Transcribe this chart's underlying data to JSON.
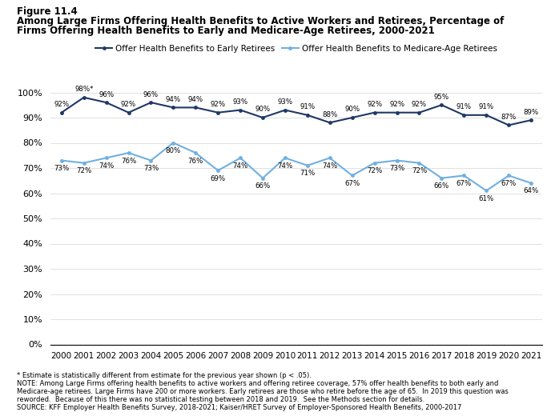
{
  "years": [
    2000,
    2001,
    2002,
    2003,
    2004,
    2005,
    2006,
    2007,
    2008,
    2009,
    2010,
    2011,
    2012,
    2013,
    2014,
    2015,
    2016,
    2017,
    2018,
    2019,
    2020,
    2021
  ],
  "early_retirees": [
    92,
    98,
    96,
    92,
    96,
    94,
    94,
    92,
    93,
    90,
    93,
    91,
    88,
    90,
    92,
    92,
    92,
    95,
    91,
    91,
    87,
    89
  ],
  "medicare_retirees": [
    73,
    72,
    74,
    76,
    73,
    80,
    76,
    69,
    74,
    66,
    74,
    71,
    74,
    67,
    72,
    73,
    72,
    66,
    67,
    61,
    67,
    64
  ],
  "early_star": [
    false,
    true,
    false,
    false,
    false,
    false,
    false,
    false,
    false,
    false,
    false,
    false,
    false,
    false,
    false,
    false,
    false,
    false,
    false,
    false,
    false,
    false
  ],
  "early_color": "#1f3864",
  "medicare_color": "#70b0e0",
  "early_label": "Offer Health Benefits to Early Retirees",
  "medicare_label": "Offer Health Benefits to Medicare-Age Retirees",
  "title_line1": "Figure 11.4",
  "title_line2": "Among Large Firms Offering Health Benefits to Active Workers and Retirees, Percentage of",
  "title_line3": "Firms Offering Health Benefits to Early and Medicare-Age Retirees, 2000-2021",
  "footnote1": "* Estimate is statistically different from estimate for the previous year shown (p < .05).",
  "footnote2": "NOTE: Among Large Firms offering health benefits to active workers and offering retiree coverage, 57% offer health benefits to both early and",
  "footnote3": "Medicare-age retirees. Large Firms have 200 or more workers. Early retirees are those who retire before the age of 65.  In 2019 this question was",
  "footnote4": "reworded.  Because of this there was no statistical testing between 2018 and 2019.  See the Methods section for details.",
  "footnote5": "SOURCE: KFF Employer Health Benefits Survey, 2018-2021; Kaiser/HRET Survey of Employer-Sponsored Health Benefits, 2000-2017",
  "ylim": [
    0,
    100
  ],
  "yticks": [
    0,
    10,
    20,
    30,
    40,
    50,
    60,
    70,
    80,
    90,
    100
  ]
}
